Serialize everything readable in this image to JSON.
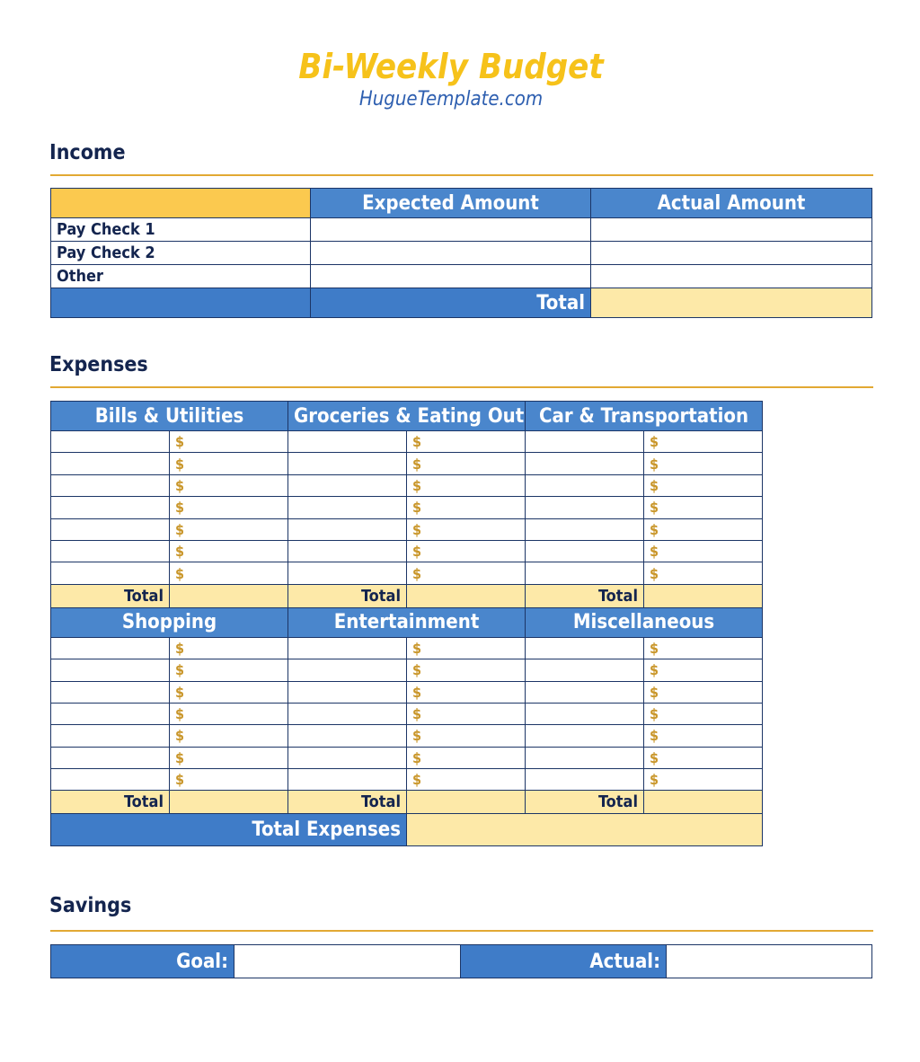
{
  "title": "Bi-Weekly Budget",
  "site": "HugueTemplate.com",
  "income": {
    "heading": "Income",
    "col_expected": "Expected Amount",
    "col_actual": "Actual Amount",
    "rows": [
      "Pay Check 1",
      "Pay Check 2",
      "Other"
    ],
    "total_label": "Total"
  },
  "expenses": {
    "heading": "Expenses",
    "categories": [
      "Bills & Utilities",
      "Groceries & Eating Out",
      "Car & Transportation",
      "Shopping",
      "Entertainment",
      "Miscellaneous"
    ],
    "currency_symbol": "$",
    "total_label": "Total",
    "total_expenses_label": "Total Expenses"
  },
  "savings": {
    "heading": "Savings",
    "goal_label": "Goal:",
    "actual_label": "Actual:"
  },
  "colors": {
    "title": "#f6c21a",
    "header_blue": "#4a86cc",
    "total_yellow": "#fde9a8",
    "rule": "#e2a933"
  }
}
